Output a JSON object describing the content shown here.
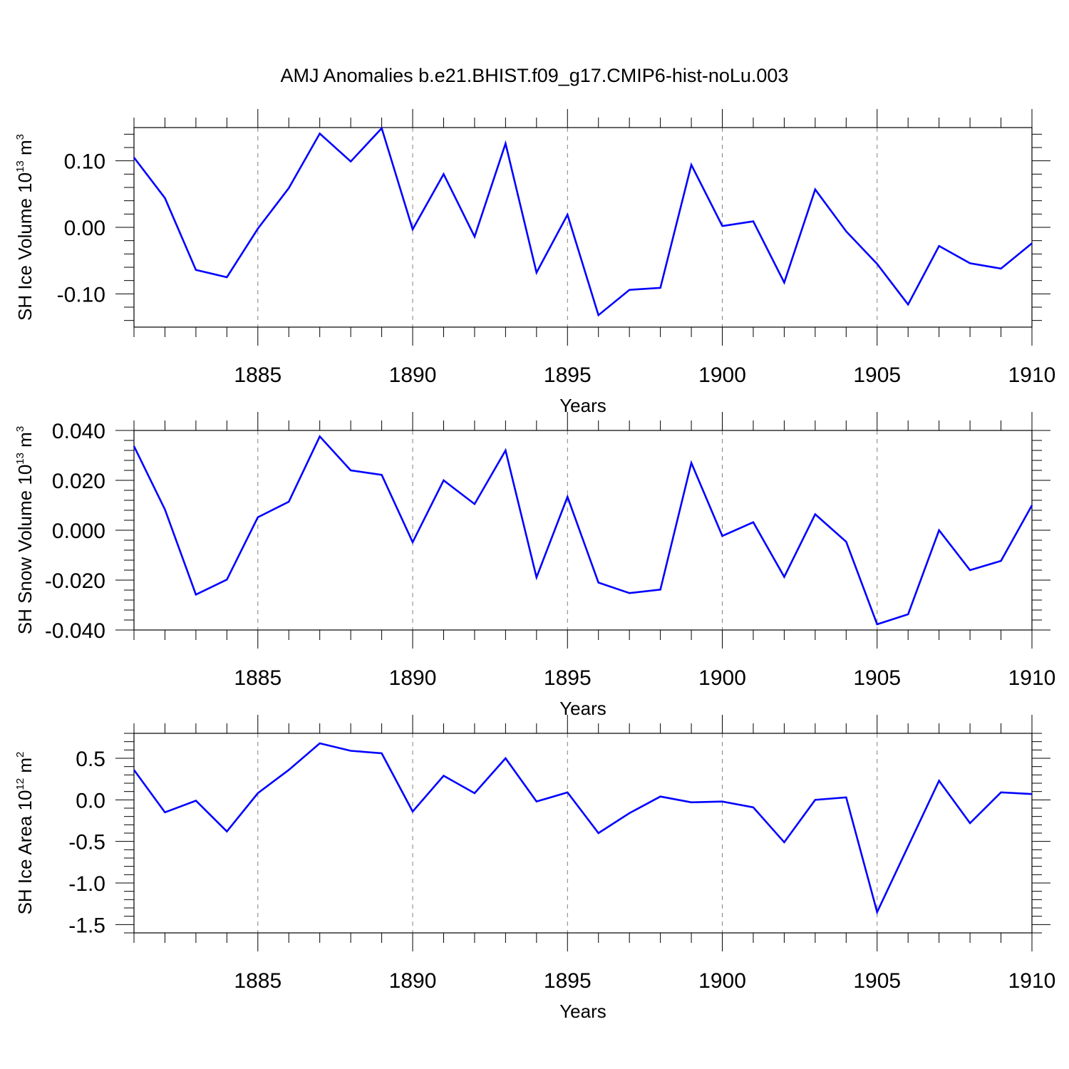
{
  "figure": {
    "title": "AMJ Anomalies b.e21.BHIST.f09_g17.CMIP6-hist-noLu.003",
    "line_color": "#0000ff",
    "grid_color": "#808080"
  },
  "chart_data": [
    {
      "type": "line",
      "xlabel": "Years",
      "ylabel": {
        "base": "SH Ice Volume 10",
        "exp": "13",
        "unit": " m",
        "unit_exp": "3"
      },
      "xlim": [
        1881,
        1910
      ],
      "ylim": [
        -0.15,
        0.15
      ],
      "yticks": [
        -0.1,
        0.0,
        0.1
      ],
      "ytick_labels": [
        "-0.10",
        "0.00",
        "0.10"
      ],
      "xticks": [
        1885,
        1890,
        1895,
        1900,
        1905,
        1910
      ],
      "xtick_labels": [
        "1885",
        "1890",
        "1895",
        "1900",
        "1905",
        "1910"
      ],
      "grid": "vertical dashed at major x ticks",
      "series": [
        {
          "name": "SH Ice Volume",
          "x": [
            1881,
            1882,
            1883,
            1884,
            1885,
            1886,
            1887,
            1888,
            1889,
            1890,
            1891,
            1892,
            1893,
            1894,
            1895,
            1896,
            1897,
            1898,
            1899,
            1900,
            1901,
            1902,
            1903,
            1904,
            1905,
            1906,
            1907,
            1908,
            1909,
            1910
          ],
          "values": [
            0.105,
            0.044,
            -0.064,
            -0.075,
            -0.002,
            0.059,
            0.141,
            0.099,
            0.149,
            -0.003,
            0.08,
            -0.014,
            0.126,
            -0.068,
            0.019,
            -0.132,
            -0.094,
            -0.091,
            0.094,
            0.002,
            0.009,
            -0.083,
            0.057,
            -0.006,
            -0.055,
            -0.116,
            -0.028,
            -0.054,
            -0.062,
            -0.024
          ]
        }
      ]
    },
    {
      "type": "line",
      "xlabel": "Years",
      "ylabel": {
        "base": "SH Snow Volume 10",
        "exp": "13",
        "unit": " m",
        "unit_exp": "3"
      },
      "xlim": [
        1881,
        1910
      ],
      "ylim": [
        -0.04,
        0.04
      ],
      "yticks": [
        -0.04,
        -0.02,
        0.0,
        0.02,
        0.04
      ],
      "ytick_labels": [
        "-0.040",
        "-0.020",
        "0.000",
        "0.020",
        "0.040"
      ],
      "xticks": [
        1885,
        1890,
        1895,
        1900,
        1905,
        1910
      ],
      "xtick_labels": [
        "1885",
        "1890",
        "1895",
        "1900",
        "1905",
        "1910"
      ],
      "grid": "vertical dashed at major x ticks",
      "series": [
        {
          "name": "SH Snow Volume",
          "x": [
            1881,
            1882,
            1883,
            1884,
            1885,
            1886,
            1887,
            1888,
            1889,
            1890,
            1891,
            1892,
            1893,
            1894,
            1895,
            1896,
            1897,
            1898,
            1899,
            1900,
            1901,
            1902,
            1903,
            1904,
            1905,
            1906,
            1907,
            1908,
            1909,
            1910
          ],
          "values": [
            0.0337,
            0.0083,
            -0.0258,
            -0.0198,
            0.0052,
            0.0114,
            0.0376,
            0.024,
            0.0222,
            -0.0048,
            0.02,
            0.0105,
            0.032,
            -0.0189,
            0.0134,
            -0.021,
            -0.0252,
            -0.0238,
            0.027,
            -0.0023,
            0.0032,
            -0.0187,
            0.0064,
            -0.0046,
            -0.0377,
            -0.0337,
            0.0,
            -0.016,
            -0.0123,
            0.01
          ]
        }
      ]
    },
    {
      "type": "line",
      "xlabel": "Years",
      "ylabel": {
        "base": "SH Ice Area 10",
        "exp": "12",
        "unit": " m",
        "unit_exp": "2"
      },
      "xlim": [
        1881,
        1910
      ],
      "ylim": [
        -1.6,
        0.8
      ],
      "yticks": [
        -1.5,
        -1.0,
        -0.5,
        0.0,
        0.5
      ],
      "ytick_labels": [
        "-1.5",
        "-1.0",
        "-0.5",
        "0.0",
        "0.5"
      ],
      "xticks": [
        1885,
        1890,
        1895,
        1900,
        1905,
        1910
      ],
      "xtick_labels": [
        "1885",
        "1890",
        "1895",
        "1900",
        "1905",
        "1910"
      ],
      "grid": "vertical dashed at major x ticks",
      "series": [
        {
          "name": "SH Ice Area",
          "x": [
            1881,
            1882,
            1883,
            1884,
            1885,
            1886,
            1887,
            1888,
            1889,
            1890,
            1891,
            1892,
            1893,
            1894,
            1895,
            1896,
            1897,
            1898,
            1899,
            1900,
            1901,
            1902,
            1903,
            1904,
            1905,
            1906,
            1907,
            1908,
            1909,
            1910
          ],
          "values": [
            0.36,
            -0.15,
            -0.01,
            -0.38,
            0.08,
            0.36,
            0.68,
            0.59,
            0.56,
            -0.14,
            0.29,
            0.08,
            0.5,
            -0.02,
            0.09,
            -0.4,
            -0.16,
            0.04,
            -0.03,
            -0.02,
            -0.09,
            -0.51,
            0.0,
            0.03,
            -1.35,
            -0.56,
            0.23,
            -0.28,
            0.09,
            0.07
          ]
        }
      ]
    }
  ]
}
